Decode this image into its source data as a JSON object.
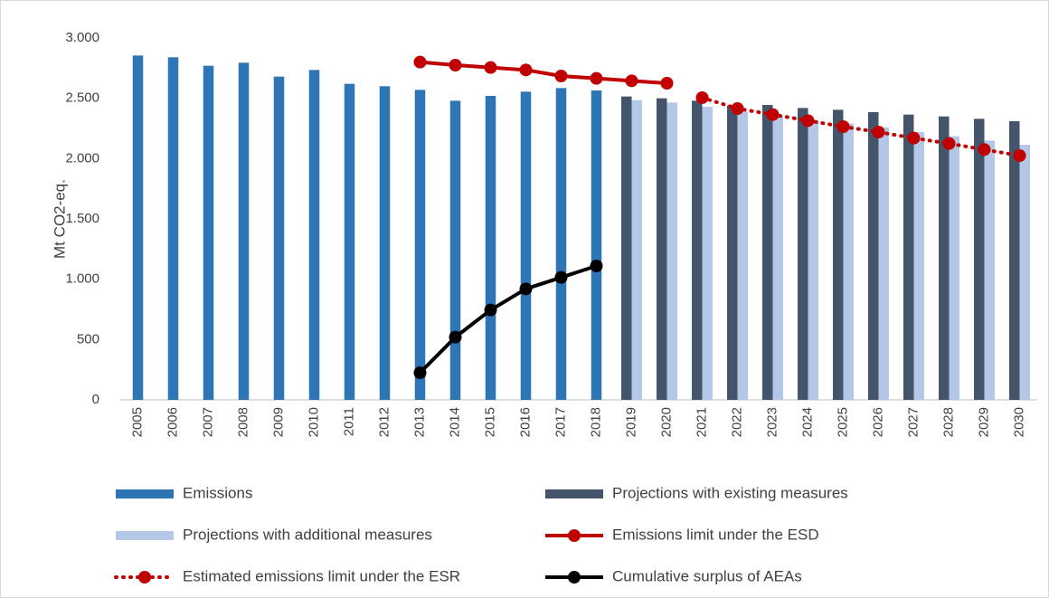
{
  "chart_data": {
    "type": "bar",
    "ylabel": "Mt CO2-eq.",
    "categories": [
      "2005",
      "2006",
      "2007",
      "2008",
      "2009",
      "2010",
      "2011",
      "2012",
      "2013",
      "2014",
      "2015",
      "2016",
      "2017",
      "2018",
      "2019",
      "2020",
      "2021",
      "2022",
      "2023",
      "2024",
      "2025",
      "2026",
      "2027",
      "2028",
      "2029",
      "2030"
    ],
    "ylim": [
      0,
      3000
    ],
    "yticks": [
      0,
      500,
      {
        "value": 1000,
        "label": "1.000"
      },
      {
        "value": 1500,
        "label": "1.500"
      },
      {
        "value": 2000,
        "label": "2.000"
      },
      {
        "value": 2500,
        "label": "2.500"
      },
      {
        "value": 3000,
        "label": "3.000"
      }
    ],
    "grid": false,
    "series": [
      {
        "name": "Emissions",
        "type": "bar",
        "color": "#2e75b6",
        "values": [
          2855,
          2840,
          2770,
          2795,
          2680,
          2735,
          2620,
          2600,
          2570,
          2480,
          2520,
          2555,
          2585,
          2565,
          null,
          null,
          null,
          null,
          null,
          null,
          null,
          null,
          null,
          null,
          null,
          null
        ]
      },
      {
        "name": "Projections with existing measures",
        "type": "bar",
        "color": "#44546a",
        "values": [
          null,
          null,
          null,
          null,
          null,
          null,
          null,
          null,
          null,
          null,
          null,
          null,
          null,
          null,
          2515,
          2500,
          2480,
          2440,
          2445,
          2420,
          2405,
          2385,
          2365,
          2350,
          2330,
          2310
        ]
      },
      {
        "name": "Projections with additional measures",
        "type": "bar",
        "color": "#b4c7e7",
        "values": [
          null,
          null,
          null,
          null,
          null,
          null,
          null,
          null,
          null,
          null,
          null,
          null,
          null,
          null,
          2485,
          2465,
          2430,
          2390,
          2355,
          2320,
          2290,
          2260,
          2220,
          2185,
          2150,
          2115
        ]
      },
      {
        "name": "Emissions limit under the ESD",
        "type": "line",
        "color": "#c00000",
        "values": [
          null,
          null,
          null,
          null,
          null,
          null,
          null,
          null,
          2800,
          2775,
          2755,
          2735,
          2685,
          2665,
          2645,
          2625,
          null,
          null,
          null,
          null,
          null,
          null,
          null,
          null,
          null,
          null
        ]
      },
      {
        "name": "Estimated emissions limit under the ESR",
        "type": "line",
        "dashed": true,
        "color": "#c00000",
        "values": [
          null,
          null,
          null,
          null,
          null,
          null,
          null,
          null,
          null,
          null,
          null,
          null,
          null,
          null,
          null,
          null,
          2505,
          2415,
          2365,
          2315,
          2265,
          2220,
          2170,
          2125,
          2075,
          2025
        ]
      },
      {
        "name": "Cumulative surplus of AEAs",
        "type": "line",
        "color": "#000000",
        "values": [
          null,
          null,
          null,
          null,
          null,
          null,
          null,
          null,
          225,
          520,
          745,
          920,
          1015,
          1110,
          null,
          null,
          null,
          null,
          null,
          null,
          null,
          null,
          null,
          null,
          null,
          null
        ]
      }
    ]
  }
}
